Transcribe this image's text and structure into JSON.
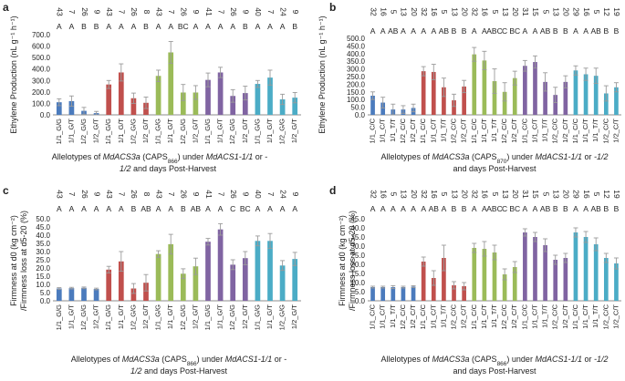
{
  "colors": {
    "blue": "#4b7bbd",
    "red": "#c0504d",
    "green": "#9bbb59",
    "purple": "#8064a2",
    "cyan": "#4bacc6",
    "error": "#9a9a9a",
    "axis": "#8c8c8c"
  },
  "chart_data": [
    {
      "panel": "a",
      "type": "bar",
      "ylabel": "Ethylene Production (nL g⁻¹ h⁻¹)",
      "xlabel_parts": [
        "Allelotypes of ",
        "MdACS3a",
        " (CAPS",
        "866",
        ") under ",
        "MdACS1-1/1",
        " or -",
        "",
        "1/2",
        " and days Post-Harvest"
      ],
      "y_ticks": [
        "0.0",
        "100.0",
        "200.0",
        "300.0",
        "400.0",
        "500.0",
        "600.0",
        "700.0"
      ],
      "ylim": [
        0,
        700
      ],
      "categories": [
        "1/1_G/G",
        "1/1_G/T",
        "1/2_G/G",
        "1/2_G/T",
        "1/1_G/G",
        "1/1_G/T",
        "1/2_G/G",
        "1/2_G/T",
        "1/1_G/G",
        "1/1_G/T",
        "1/2_G/G",
        "1/2_G/T",
        "1/1_G/G",
        "1/1_G/T",
        "1/2_G/G",
        "1/2_G/T",
        "1/1_G/G",
        "1/1_G/T",
        "1/2_G/G",
        "1/2_G/T"
      ],
      "values": [
        110,
        120,
        35,
        15,
        265,
        370,
        145,
        105,
        340,
        545,
        195,
        195,
        305,
        370,
        165,
        190,
        270,
        325,
        135,
        150
      ],
      "errors": [
        30,
        45,
        30,
        15,
        35,
        75,
        45,
        50,
        50,
        95,
        70,
        60,
        60,
        45,
        55,
        60,
        30,
        65,
        45,
        45
      ],
      "letters": [
        "A",
        "A",
        "B",
        "B",
        "A",
        "A",
        "A",
        "B",
        "A",
        "A",
        "BC",
        "A",
        "A",
        "A",
        "A",
        "B",
        "A",
        "A",
        "A",
        "B"
      ],
      "counts": [
        "43",
        "7",
        "26",
        "9",
        "43",
        "7",
        "26",
        "8",
        "43",
        "7",
        "26",
        "9",
        "41",
        "7",
        "26",
        "9",
        "40",
        "7",
        "24",
        "9"
      ],
      "colors": [
        "blue",
        "blue",
        "blue",
        "blue",
        "red",
        "red",
        "red",
        "red",
        "green",
        "green",
        "green",
        "green",
        "purple",
        "purple",
        "purple",
        "purple",
        "cyan",
        "cyan",
        "cyan",
        "cyan"
      ]
    },
    {
      "panel": "b",
      "type": "bar",
      "ylabel": "Ethylene Production (nL g⁻¹ h⁻¹)",
      "xlabel_parts": [
        "Allelotypes of ",
        "MdACS3a",
        " (CAPS",
        "870",
        ") under ",
        "MdACS1-1/1",
        " or ",
        "-1/2",
        "",
        " and days Post-Harvest"
      ],
      "y_ticks": [
        "0.0",
        "50.0",
        "100.0",
        "150.0",
        "200.0",
        "250.0",
        "300.0",
        "350.0",
        "400.0",
        "450.0",
        "500.0"
      ],
      "ylim": [
        0,
        500
      ],
      "categories": [
        "1/1_C/C",
        "1/1_C/T",
        "1/1_T/T",
        "1/2_C/C",
        "1/2_C/T",
        "1/1_C/C",
        "1/1_C/T",
        "1/1_T/T",
        "1/2_C/C",
        "1/2_C/T",
        "1/1_C/C",
        "1/1_C/T",
        "1/1_T/T",
        "1/2_C/C",
        "1/2_C/T",
        "1/1_C/C",
        "1/1_C/T",
        "1/1_T/T",
        "1/2_C/C",
        "1/2_C/T",
        "1/1_C/C",
        "1/1_C/T",
        "1/1_T/T",
        "1/2_C/C",
        "1/2_C/T"
      ],
      "values": [
        125,
        80,
        35,
        35,
        45,
        285,
        280,
        180,
        95,
        185,
        395,
        355,
        220,
        150,
        240,
        320,
        345,
        215,
        130,
        215,
        290,
        265,
        255,
        140,
        180
      ],
      "errors": [
        25,
        35,
        35,
        25,
        25,
        30,
        50,
        60,
        40,
        40,
        45,
        60,
        80,
        60,
        45,
        35,
        40,
        60,
        50,
        40,
        30,
        40,
        50,
        50,
        30
      ],
      "letters": [
        "A",
        "A",
        "AB",
        "A",
        "A",
        "A",
        "A",
        "AB",
        "B",
        "B",
        "A",
        "A",
        "ABC",
        "C",
        "BC",
        "A",
        "A",
        "AB",
        "B",
        "B",
        "A",
        "A",
        "AB",
        "B",
        "B"
      ],
      "counts": [
        "32",
        "16",
        "5",
        "13",
        "20",
        "32",
        "16",
        "5",
        "13",
        "20",
        "32",
        "16",
        "5",
        "13",
        "20",
        "31",
        "15",
        "5",
        "13",
        "20",
        "29",
        "16",
        "5",
        "12",
        "19"
      ],
      "colors": [
        "blue",
        "blue",
        "blue",
        "blue",
        "blue",
        "red",
        "red",
        "red",
        "red",
        "red",
        "green",
        "green",
        "green",
        "green",
        "green",
        "purple",
        "purple",
        "purple",
        "purple",
        "purple",
        "cyan",
        "cyan",
        "cyan",
        "cyan",
        "cyan"
      ]
    },
    {
      "panel": "c",
      "type": "bar",
      "ylabel": "Firmness at d0 (kg cm⁻²) /Firmness loss at d5-20 (%)",
      "xlabel_parts": [
        "Allelotypes of ",
        "MdACS3a",
        " (CAPS",
        "866",
        ") under ",
        "MdACS1-1/1",
        " or -",
        "",
        "1/2",
        " and days Post-Harvest"
      ],
      "y_ticks": [
        "0.0",
        "5.0",
        "10.0",
        "15.0",
        "20.0",
        "25.0",
        "30.0",
        "35.0",
        "40.0",
        "45.0",
        "50.0"
      ],
      "ylim": [
        0,
        50
      ],
      "categories": [
        "1/1_G/G",
        "1/1_G/T",
        "1/2_G/G",
        "1/2_G/T",
        "1/1_G/G",
        "1/1_G/T",
        "1/2_G/G",
        "1/2_G/T",
        "1/1_G/G",
        "1/1_G/T",
        "1/2_G/G",
        "1/2_G/T",
        "1/1_G/G",
        "1/1_G/T",
        "1/2_G/G",
        "1/2_G/T",
        "1/1_G/G",
        "1/1_G/T",
        "1/2_G/G",
        "1/2_G/T"
      ],
      "values": [
        7.5,
        7.7,
        7.9,
        7.2,
        19,
        24,
        7.5,
        11,
        28.5,
        34.5,
        16.5,
        21,
        36,
        43.5,
        22,
        26,
        36.5,
        36.5,
        21.5,
        25.5
      ],
      "errors": [
        0.5,
        0.5,
        0.5,
        0.5,
        2,
        6,
        3,
        5,
        2,
        6,
        3,
        5,
        2,
        3.5,
        3,
        4,
        3,
        4.5,
        3,
        4
      ],
      "letters": [
        "A",
        "A",
        "A",
        "A",
        "A",
        "A",
        "B",
        "AB",
        "A",
        "A",
        "B",
        "AB",
        "A",
        "A",
        "C",
        "BC",
        "A",
        "A",
        "A",
        "A"
      ],
      "counts": [
        "43",
        "7",
        "26",
        "9",
        "43",
        "7",
        "26",
        "8",
        "43",
        "7",
        "26",
        "9",
        "41",
        "7",
        "26",
        "9",
        "40",
        "7",
        "24",
        "9"
      ],
      "colors": [
        "blue",
        "blue",
        "blue",
        "blue",
        "red",
        "red",
        "red",
        "red",
        "green",
        "green",
        "green",
        "green",
        "purple",
        "purple",
        "purple",
        "purple",
        "cyan",
        "cyan",
        "cyan",
        "cyan"
      ]
    },
    {
      "panel": "d",
      "type": "bar",
      "ylabel": "Firmness at d0 (kg cm⁻²) /Firmness loss at d5-20 (%)",
      "xlabel_parts": [
        "Allelotypes of ",
        "MdACS3a",
        " (CAPS",
        "866",
        ") under ",
        "MdACS1-1/1",
        " or ",
        "-1/2",
        "",
        " and days Post-Harvest"
      ],
      "y_ticks": [
        "0.0",
        "5.0",
        "10.0",
        "15.0",
        "20.0",
        "25.0",
        "30.0",
        "35.0",
        "40.0",
        "45.0"
      ],
      "ylim": [
        0,
        45
      ],
      "categories": [
        "1/1_C/C",
        "1/1_C/T",
        "1/1_T/T",
        "1/2_C/C",
        "1/2_C/T",
        "1/1_C/C",
        "1/1_C/T",
        "1/1_T/T",
        "1/2_C/C",
        "1/2_C/T",
        "1/1_C/C",
        "1/1_C/T",
        "1/1_T/T",
        "1/2_C/C",
        "1/2_C/T",
        "1/1_C/C",
        "1/1_C/T",
        "1/1_T/T",
        "1/2_C/C",
        "1/2_C/T",
        "1/1_C/C",
        "1/1_C/T",
        "1/1_T/T",
        "1/2_C/C",
        "1/2_C/T"
      ],
      "values": [
        7.5,
        7.5,
        7.5,
        7.5,
        7.8,
        21.5,
        12.5,
        23.5,
        8.5,
        8,
        29,
        28.5,
        26.5,
        14.5,
        18.5,
        37.5,
        35,
        30.5,
        22.5,
        23.5,
        37.5,
        35,
        31,
        23.5,
        20.5
      ],
      "errors": [
        0.5,
        0.5,
        0.8,
        0.5,
        0.5,
        2.5,
        4,
        7,
        2,
        2,
        2.5,
        4,
        4,
        3,
        3,
        2,
        2.5,
        3.5,
        2.5,
        2.5,
        2.5,
        3,
        3.5,
        2.5,
        3
      ],
      "letters": [
        "A",
        "A",
        "A",
        "A",
        "A",
        "A",
        "AB",
        "A",
        "B",
        "B",
        "A",
        "A",
        "ABC",
        "C",
        "BC",
        "A",
        "A",
        "AB",
        "B",
        "B",
        "A",
        "A",
        "AB",
        "B",
        "B"
      ],
      "counts": [
        "32",
        "16",
        "5",
        "13",
        "20",
        "32",
        "16",
        "5",
        "13",
        "20",
        "32",
        "16",
        "5",
        "13",
        "20",
        "31",
        "15",
        "5",
        "13",
        "20",
        "29",
        "16",
        "5",
        "12",
        "19"
      ],
      "colors": [
        "blue",
        "blue",
        "blue",
        "blue",
        "blue",
        "red",
        "red",
        "red",
        "red",
        "red",
        "green",
        "green",
        "green",
        "green",
        "green",
        "purple",
        "purple",
        "purple",
        "purple",
        "purple",
        "cyan",
        "cyan",
        "cyan",
        "cyan",
        "cyan"
      ]
    }
  ]
}
